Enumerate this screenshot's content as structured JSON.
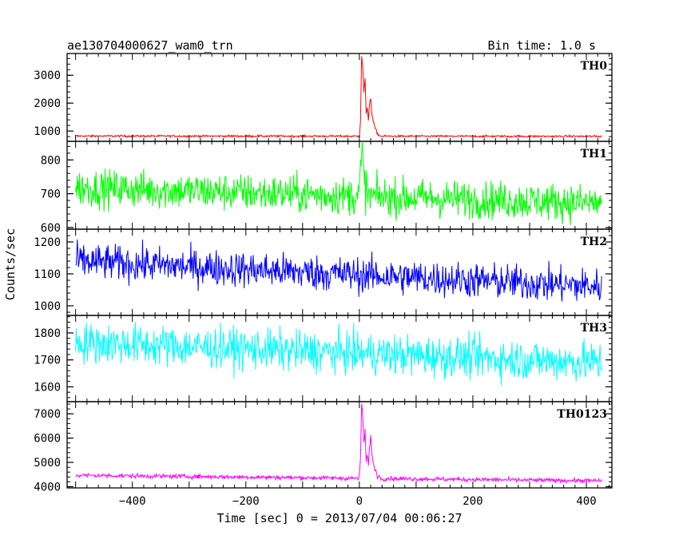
{
  "header": {
    "source": "ae130704000627_wam0_trn",
    "bin_time": "Bin time: 1.0 s"
  },
  "chart_data": {
    "type": "line",
    "title": "ae130704000627_wam0_trn",
    "subtitle": "Bin time: 1.0 s",
    "xlabel": "Time [sec] 0 = 2013/07/04 00:06:27",
    "ylabel": "Counts/sec",
    "xlim": [
      -515,
      445
    ],
    "x_ticks": [
      -400,
      -200,
      0,
      200,
      400
    ],
    "x_tick_labels": [
      "−400",
      "−200",
      "0",
      "200",
      "400"
    ],
    "x_start": -500,
    "x_end": 427,
    "bin_sec": 1.0,
    "grid": false,
    "series": [
      {
        "name": "TH0",
        "color": "#ff0000",
        "ylim": [
          630,
          3780
        ],
        "y_ticks": [
          1000,
          2000,
          3000
        ],
        "baseline_start": 820,
        "baseline_end": 810,
        "noise": 18,
        "burst": [
          {
            "t": 0,
            "v": 820
          },
          {
            "t": 2,
            "v": 1400
          },
          {
            "t": 4,
            "v": 3700
          },
          {
            "t": 6,
            "v": 3300
          },
          {
            "t": 8,
            "v": 2400
          },
          {
            "t": 10,
            "v": 2900
          },
          {
            "t": 12,
            "v": 1600
          },
          {
            "t": 14,
            "v": 1800
          },
          {
            "t": 16,
            "v": 1400
          },
          {
            "t": 18,
            "v": 2000
          },
          {
            "t": 20,
            "v": 2200
          },
          {
            "t": 22,
            "v": 1600
          },
          {
            "t": 25,
            "v": 1300
          },
          {
            "t": 28,
            "v": 1100
          },
          {
            "t": 32,
            "v": 900
          },
          {
            "t": 36,
            "v": 830
          }
        ]
      },
      {
        "name": "TH1",
        "color": "#00ff00",
        "ylim": [
          595,
          855
        ],
        "y_ticks": [
          600,
          700,
          800
        ],
        "baseline_start": 718,
        "baseline_end": 672,
        "noise": 28,
        "burst": [
          {
            "t": 0,
            "v": 720
          },
          {
            "t": 3,
            "v": 780
          },
          {
            "t": 5,
            "v": 850
          },
          {
            "t": 7,
            "v": 760
          },
          {
            "t": 10,
            "v": 730
          },
          {
            "t": 14,
            "v": 700
          }
        ]
      },
      {
        "name": "TH2",
        "color": "#0000ff",
        "ylim": [
          970,
          1240
        ],
        "y_ticks": [
          1000,
          1100,
          1200
        ],
        "baseline_start": 1140,
        "baseline_end": 1060,
        "noise": 28,
        "burst": []
      },
      {
        "name": "TH3",
        "color": "#00ffff",
        "ylim": [
          1545,
          1865
        ],
        "y_ticks": [
          1600,
          1700,
          1800
        ],
        "baseline_start": 1765,
        "baseline_end": 1690,
        "noise": 38,
        "burst": []
      },
      {
        "name": "TH0123",
        "color": "#ff00ff",
        "ylim": [
          3950,
          7500
        ],
        "y_ticks": [
          4000,
          5000,
          6000,
          7000
        ],
        "baseline_start": 4470,
        "baseline_end": 4240,
        "noise": 45,
        "burst": [
          {
            "t": 0,
            "v": 4400
          },
          {
            "t": 2,
            "v": 5200
          },
          {
            "t": 4,
            "v": 7400
          },
          {
            "t": 6,
            "v": 6900
          },
          {
            "t": 8,
            "v": 5800
          },
          {
            "t": 10,
            "v": 6300
          },
          {
            "t": 12,
            "v": 5000
          },
          {
            "t": 14,
            "v": 5300
          },
          {
            "t": 16,
            "v": 4900
          },
          {
            "t": 18,
            "v": 5600
          },
          {
            "t": 20,
            "v": 6200
          },
          {
            "t": 22,
            "v": 5300
          },
          {
            "t": 25,
            "v": 4900
          },
          {
            "t": 28,
            "v": 4700
          },
          {
            "t": 32,
            "v": 4450
          },
          {
            "t": 36,
            "v": 4400
          }
        ]
      }
    ]
  }
}
